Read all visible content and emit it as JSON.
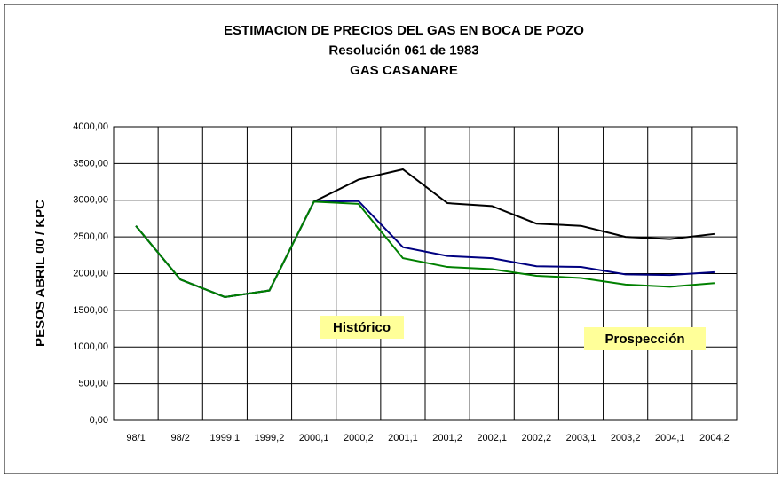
{
  "chart_data": {
    "type": "line",
    "title": [
      "ESTIMACION DE PRECIOS DEL GAS EN BOCA DE POZO",
      "Resolución 061 de 1983",
      "GAS CASANARE"
    ],
    "y_label": "PESOS ABRIL 00 / KPC",
    "annotations": [
      "Histórico",
      "Prospección"
    ],
    "categories": [
      "98/1",
      "98/2",
      "1999,1",
      "1999,2",
      "2000,1",
      "2000,2",
      "2001,1",
      "2001,2",
      "2002,1",
      "2002,2",
      "2003,1",
      "2003,2",
      "2004,1",
      "2004,2"
    ],
    "series": [
      {
        "color": "#000000",
        "values": [
          2650,
          1920,
          1680,
          1770,
          2980,
          3280,
          3420,
          2960,
          2920,
          2680,
          2650,
          2500,
          2470,
          2540
        ]
      },
      {
        "color": "#000080",
        "values": [
          2650,
          1920,
          1680,
          1770,
          2980,
          2990,
          2360,
          2240,
          2210,
          2100,
          2090,
          1990,
          1980,
          2020
        ]
      },
      {
        "color": "#008000",
        "values": [
          2650,
          1920,
          1680,
          1770,
          2980,
          2950,
          2210,
          2090,
          2060,
          1970,
          1940,
          1850,
          1820,
          1870
        ]
      }
    ],
    "ylim": [
      0,
      4000
    ],
    "yticks": [
      {
        "value": 0,
        "label": "0,00"
      },
      {
        "value": 500,
        "label": "500,00"
      },
      {
        "value": 1000,
        "label": "1000,00"
      },
      {
        "value": 1500,
        "label": "1500,00"
      },
      {
        "value": 2000,
        "label": "2000,00"
      },
      {
        "value": 2500,
        "label": "2500,00"
      },
      {
        "value": 3000,
        "label": "3000,00"
      },
      {
        "value": 3500,
        "label": "3500,00"
      },
      {
        "value": 4000,
        "label": "4000,00"
      }
    ],
    "grid": true
  }
}
